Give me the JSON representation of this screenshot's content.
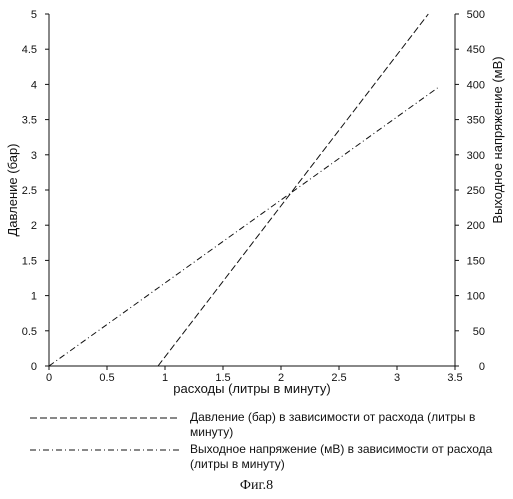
{
  "chart_data": {
    "type": "line",
    "xlabel": "расходы (литры в минуту)",
    "ylabel_left": "Давление (бар)",
    "ylabel_right": "Выходное напряжение (мВ)",
    "xlim": [
      0,
      3.5
    ],
    "ylim_left": [
      0,
      5
    ],
    "ylim_right": [
      0,
      500
    ],
    "x_ticks": [
      "0",
      "0.5",
      "1",
      "1.5",
      "2",
      "2.5",
      "3",
      "3.5"
    ],
    "y_left_ticks": [
      "0",
      "0.5",
      "1",
      "1.5",
      "2",
      "2.5",
      "3",
      "3.5",
      "4",
      "4.5",
      "5"
    ],
    "y_right_ticks": [
      "0",
      "50",
      "100",
      "150",
      "200",
      "250",
      "300",
      "350",
      "400",
      "450",
      "500"
    ],
    "grid": false,
    "series": [
      {
        "name": "Давление (бар) в зависимости от расхода (литры в минуту)",
        "axis": "left",
        "style": "dashed",
        "x": [
          0.94,
          3.27
        ],
        "y": [
          0,
          5
        ]
      },
      {
        "name": "Выходное напряжение (мВ) в зависимости от расхода (литры в минуту)",
        "axis": "right",
        "style": "dash-dot",
        "x": [
          0,
          3.35
        ],
        "y": [
          0,
          395
        ]
      }
    ]
  },
  "legend": {
    "entry1": "Давление (бар) в зависимости от расхода (литры в минуту)",
    "entry2": "Выходное напряжение (мВ) в зависимости от расхода (литры в минуту)"
  },
  "caption": "Фиг.8",
  "colors": {
    "line": "#111111",
    "axis": "#111111"
  }
}
